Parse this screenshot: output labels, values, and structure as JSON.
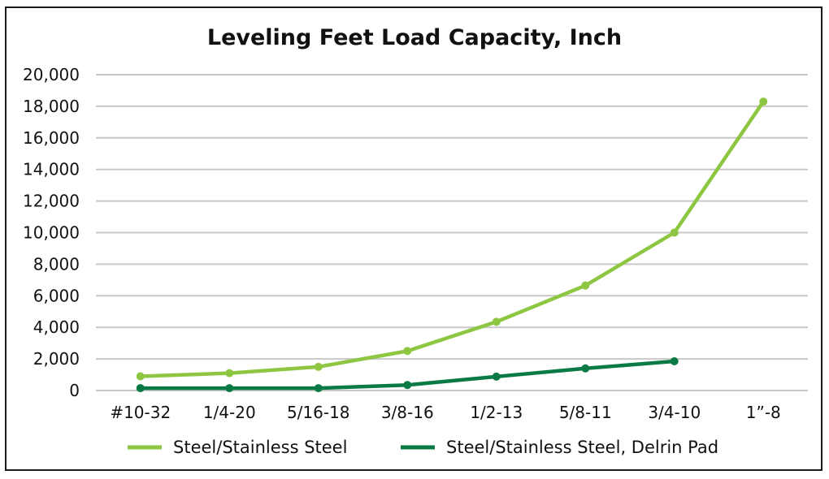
{
  "chart_data": {
    "type": "line",
    "title": "Leveling Feet Load Capacity, Inch",
    "xlabel": "",
    "ylabel": "",
    "categories": [
      "#10-32",
      "1/4-20",
      "5/16-18",
      "3/8-16",
      "1/2-13",
      "5/8-11",
      "3/4-10",
      "1”-8"
    ],
    "yticks": [
      "0",
      "2,000",
      "4,000",
      "6,000",
      "8,000",
      "10,000",
      "12,000",
      "14,000",
      "16,000",
      "18,000",
      "20,000"
    ],
    "ylim": [
      0,
      20000
    ],
    "grid": true,
    "legend": "bottom",
    "series": [
      {
        "name": "Steel/Stainless Steel",
        "color": "#8dc641",
        "values": [
          900,
          1100,
          1500,
          2500,
          4350,
          6650,
          10000,
          18300
        ]
      },
      {
        "name": "Steel/Stainless Steel, Delrin Pad",
        "color": "#0a7a45",
        "values": [
          150,
          150,
          150,
          350,
          880,
          1400,
          1850,
          null
        ]
      }
    ]
  }
}
